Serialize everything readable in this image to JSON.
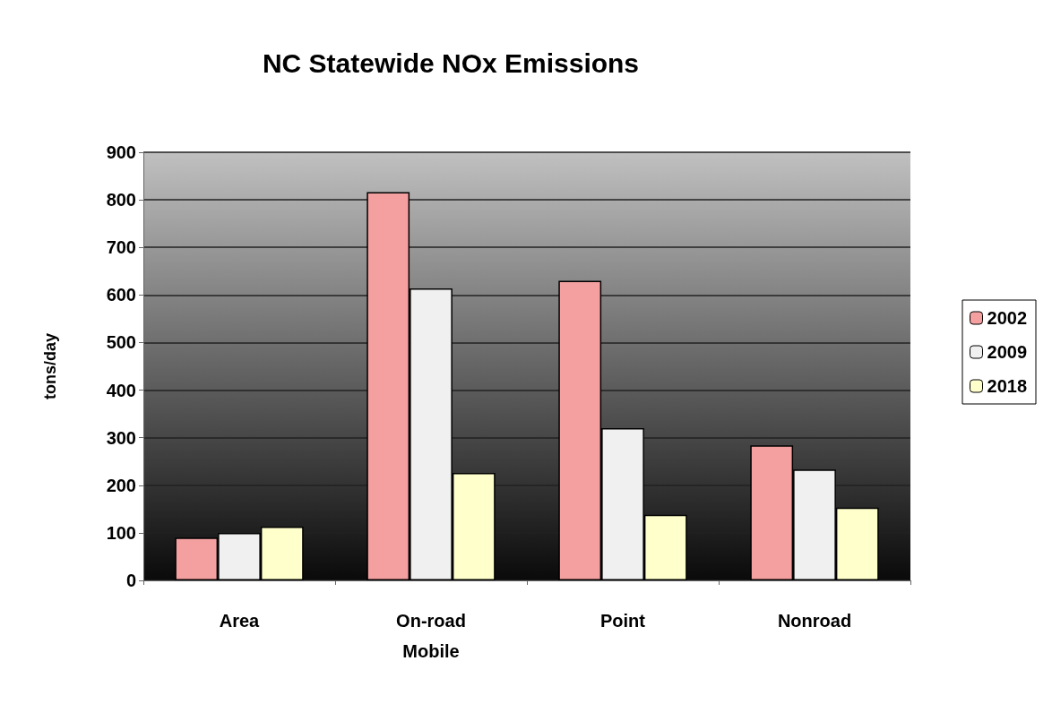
{
  "chart_data": {
    "type": "bar",
    "title": "NC Statewide NOx Emissions",
    "ylabel": "tons/day",
    "categories": [
      "Area",
      "On-road\nMobile",
      "Point",
      "Nonroad"
    ],
    "series": [
      {
        "name": "2002",
        "color": "#f4a0a0",
        "values": [
          90,
          816,
          630,
          284
        ]
      },
      {
        "name": "2009",
        "color": "#f0f0f0",
        "values": [
          100,
          614,
          320,
          233
        ]
      },
      {
        "name": "2018",
        "color": "#ffffcc",
        "values": [
          113,
          226,
          138,
          153
        ]
      }
    ],
    "ylim": [
      0,
      900
    ],
    "yticks": [
      0,
      100,
      200,
      300,
      400,
      500,
      600,
      700,
      800,
      900
    ],
    "grid": "y",
    "legend": "right"
  }
}
